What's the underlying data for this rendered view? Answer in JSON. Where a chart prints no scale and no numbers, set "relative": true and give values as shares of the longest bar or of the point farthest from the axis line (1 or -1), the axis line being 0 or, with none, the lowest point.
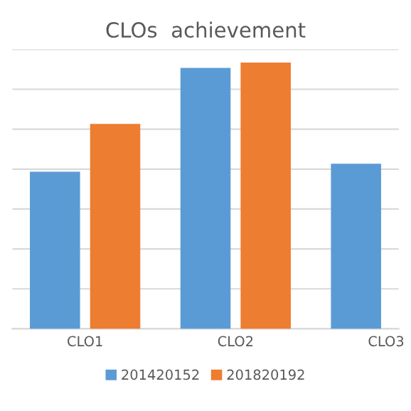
{
  "chart_data": {
    "type": "bar",
    "title": "CLOs  achievement",
    "relative": true,
    "categories": [
      "CLO1",
      "CLO2",
      "CLO3"
    ],
    "series": [
      {
        "name": "201420152",
        "color": "#5b9bd5",
        "values": [
          0.59,
          0.98,
          0.62
        ]
      },
      {
        "name": "201820192",
        "color": "#ed7d31",
        "values": [
          0.77,
          1,
          null
        ]
      }
    ],
    "grid": "y",
    "legend": "bottom"
  }
}
